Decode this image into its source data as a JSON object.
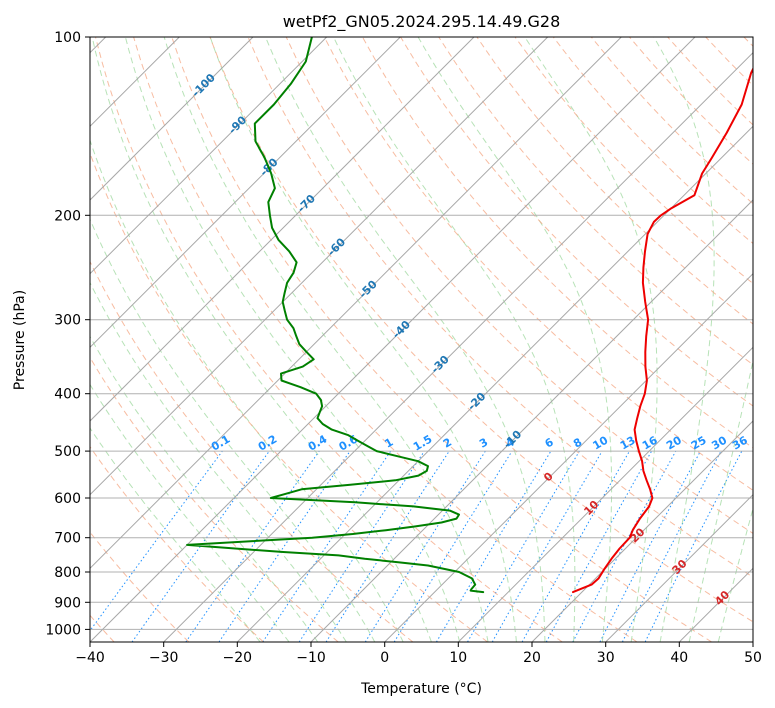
{
  "chart_data": {
    "type": "line",
    "title": "wetPf2_GN05.2024.295.14.49.G28",
    "xlabel": "Temperature (°C)",
    "ylabel": "Pressure (hPa)",
    "xlim": [
      -40,
      50
    ],
    "ylim": [
      1050,
      100
    ],
    "y_scale": "log",
    "x_ticks": [
      -40,
      -30,
      -20,
      -10,
      0,
      10,
      20,
      30,
      40,
      50
    ],
    "y_ticks": [
      100,
      200,
      300,
      400,
      500,
      600,
      700,
      800,
      900,
      1000
    ],
    "grid": true,
    "colors": {
      "temperature": "#ee0000",
      "dewpoint": "#008000",
      "dry_adiabat": "#f4a582",
      "moist_adiabat": "#98d698",
      "mixing_ratio": "#1e90ff",
      "isotherm": "#999999",
      "dry_label": "#1f77b4",
      "moist_label": "#d62728"
    },
    "series": [
      {
        "key": "temperature",
        "p": [
          865,
          840,
          820,
          790,
          760,
          730,
          700,
          680,
          650,
          620,
          600,
          580,
          560,
          540,
          520,
          500,
          480,
          460,
          440,
          420,
          400,
          380,
          360,
          340,
          320,
          300,
          280,
          260,
          245,
          230,
          215,
          205,
          200,
          195,
          185,
          170,
          160,
          145,
          130,
          115,
          100
        ],
        "t": [
          18.8,
          20.3,
          20.4,
          19.9,
          19.5,
          19.2,
          19.1,
          18.5,
          17.9,
          17.5,
          16.8,
          15.3,
          13.6,
          11.9,
          10.4,
          8.6,
          6.8,
          5.1,
          3.9,
          2.7,
          1.6,
          0.1,
          -2.0,
          -4.0,
          -6.0,
          -8.0,
          -10.8,
          -13.7,
          -15.7,
          -17.7,
          -19.7,
          -20.5,
          -20.4,
          -20.0,
          -18.6,
          -20.5,
          -21.3,
          -22.7,
          -24.5,
          -27.5,
          -30.0
        ]
      },
      {
        "key": "dewpoint",
        "p": [
          865,
          860,
          855,
          840,
          820,
          800,
          780,
          770,
          760,
          750,
          740,
          730,
          720,
          700,
          690,
          680,
          670,
          660,
          650,
          640,
          630,
          620,
          610,
          600,
          590,
          580,
          570,
          560,
          550,
          540,
          530,
          520,
          510,
          500,
          490,
          480,
          470,
          460,
          450,
          440,
          430,
          420,
          410,
          400,
          390,
          380,
          370,
          360,
          350,
          340,
          330,
          320,
          310,
          300,
          290,
          280,
          270,
          260,
          250,
          240,
          230,
          220,
          210,
          200,
          190,
          180,
          170,
          160,
          150,
          140,
          130,
          120,
          110,
          100
        ],
        "t": [
          6.6,
          4.7,
          4.6,
          4.5,
          3.2,
          0.6,
          -4.5,
          -9.0,
          -14.0,
          -18.0,
          -26.0,
          -33.0,
          -40.0,
          -24.0,
          -19.0,
          -15.0,
          -11.5,
          -8.5,
          -7.0,
          -7.2,
          -9.0,
          -14.5,
          -23.0,
          -35.0,
          -33.5,
          -32.0,
          -26.0,
          -20.5,
          -18.0,
          -17.5,
          -18.0,
          -20.0,
          -23.5,
          -27.0,
          -29.0,
          -31.0,
          -33.0,
          -36.0,
          -38.0,
          -39.5,
          -40.0,
          -40.5,
          -41.5,
          -43.0,
          -46.0,
          -49.5,
          -50.5,
          -48.5,
          -48.0,
          -50.0,
          -52.0,
          -53.5,
          -55.0,
          -57.0,
          -58.5,
          -60.0,
          -61.0,
          -62.0,
          -62.5,
          -63.5,
          -66.0,
          -69.0,
          -71.5,
          -73.5,
          -75.5,
          -76.5,
          -79.0,
          -82.0,
          -85.5,
          -88.0,
          -88.0,
          -88.5,
          -89.5,
          -92.0
        ]
      }
    ],
    "mixing_ratio_labels": [
      "0.1",
      "0.2",
      "0.4",
      "0.6",
      "1",
      "1.5",
      "2",
      "3",
      "4",
      "6",
      "8",
      "10",
      "13",
      "16",
      "20",
      "25",
      "30",
      "36"
    ],
    "dry_adiabat_labels": [
      "-100",
      "-90",
      "-80",
      "-70",
      "-60",
      "-50",
      "-40",
      "-30",
      "-20",
      "-10"
    ],
    "moist_adiabat_labels": [
      "0",
      "10",
      "20",
      "30",
      "40"
    ]
  }
}
